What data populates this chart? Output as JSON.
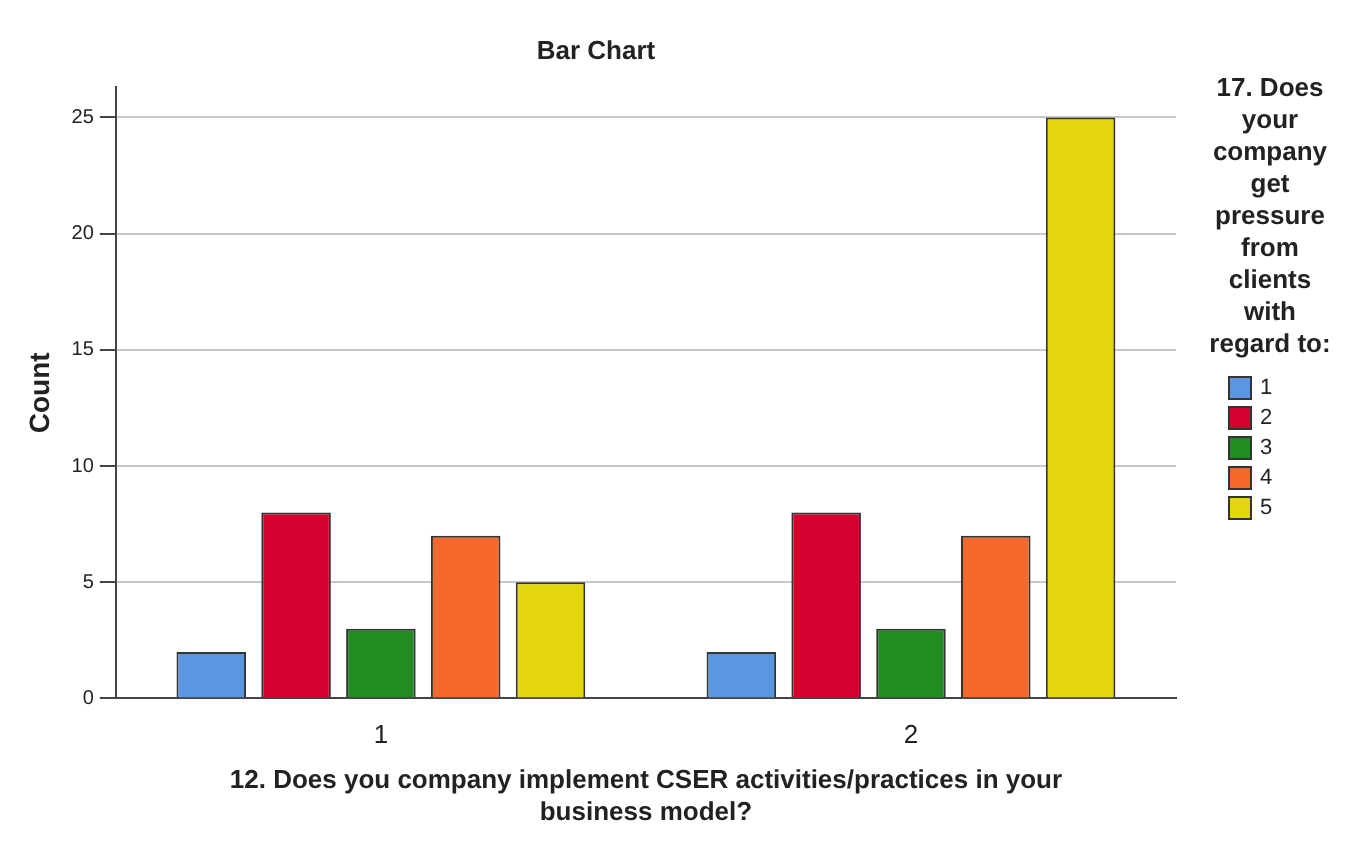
{
  "chart_data": {
    "type": "bar",
    "title": "Bar Chart",
    "xlabel": "12. Does you company implement CSER activities/practices in your business model?",
    "ylabel": "Count",
    "legend_title": "17. Does your company get pressure from clients with regard to:",
    "categories": [
      "1",
      "2"
    ],
    "series": [
      {
        "name": "1",
        "color": "#5b97e0",
        "values": [
          2,
          2
        ]
      },
      {
        "name": "2",
        "color": "#d6002e",
        "values": [
          8,
          8
        ]
      },
      {
        "name": "3",
        "color": "#228b22",
        "values": [
          3,
          3
        ]
      },
      {
        "name": "4",
        "color": "#f56a2c",
        "values": [
          7,
          7
        ]
      },
      {
        "name": "5",
        "color": "#e4d60c",
        "values": [
          5,
          25
        ]
      }
    ],
    "ylim": [
      0,
      26.3
    ],
    "yticks": [
      0,
      5,
      10,
      15,
      20,
      25
    ],
    "grid": "y",
    "legend": "right"
  }
}
